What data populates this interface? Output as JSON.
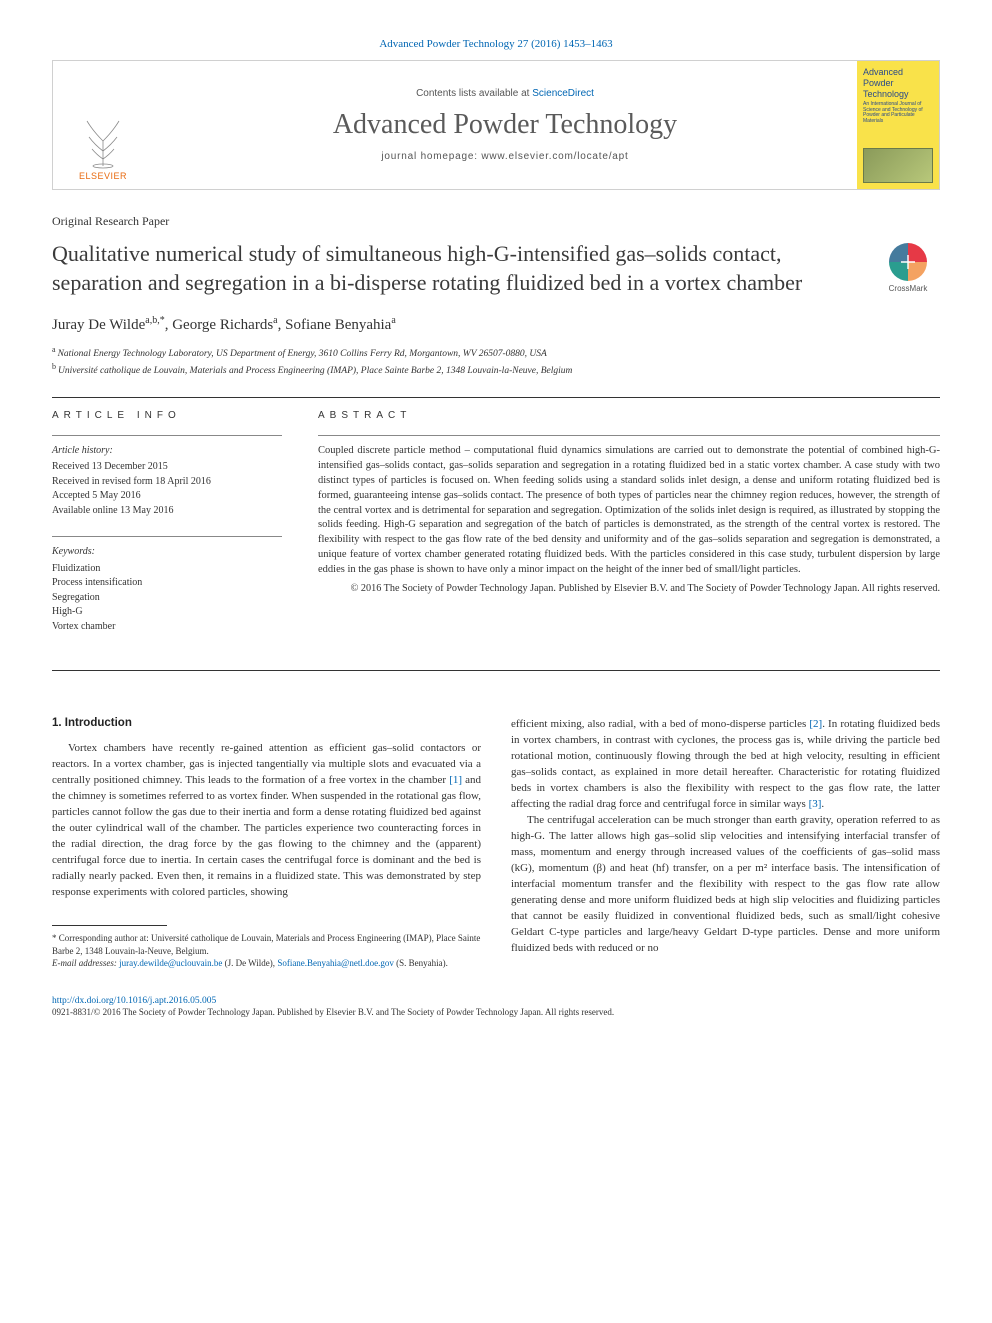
{
  "header": {
    "citation": "Advanced Powder Technology 27 (2016) 1453–1463",
    "contents_prefix": "Contents lists available at ",
    "contents_link": "ScienceDirect",
    "journal": "Advanced Powder Technology",
    "homepage_prefix": "journal homepage: ",
    "homepage_url": "www.elsevier.com/locate/apt",
    "publisher_name": "ELSEVIER",
    "cover_title": "Advanced Powder Technology",
    "cover_sub": "An International Journal of Science and Technology of Powder and Particulate Materials"
  },
  "article": {
    "type": "Original Research Paper",
    "title": "Qualitative numerical study of simultaneous high-G-intensified gas–solids contact, separation and segregation in a bi-disperse rotating fluidized bed in a vortex chamber",
    "crossmark_label": "CrossMark"
  },
  "authors": {
    "line_parts": [
      {
        "text": "Juray De Wilde",
        "sup": "a,b,",
        "star": true
      },
      {
        "text": ", George Richards",
        "sup": "a"
      },
      {
        "text": ", Sofiane Benyahia",
        "sup": "a"
      }
    ]
  },
  "affiliations": [
    {
      "sup": "a",
      "text": "National Energy Technology Laboratory, US Department of Energy, 3610 Collins Ferry Rd, Morgantown, WV 26507-0880, USA"
    },
    {
      "sup": "b",
      "text": "Université catholique de Louvain, Materials and Process Engineering (IMAP), Place Sainte Barbe 2, 1348 Louvain-la-Neuve, Belgium"
    }
  ],
  "article_info": {
    "heading": "ARTICLE INFO",
    "history_label": "Article history:",
    "history": [
      "Received 13 December 2015",
      "Received in revised form 18 April 2016",
      "Accepted 5 May 2016",
      "Available online 13 May 2016"
    ],
    "keywords_label": "Keywords:",
    "keywords": [
      "Fluidization",
      "Process intensification",
      "Segregation",
      "High-G",
      "Vortex chamber"
    ]
  },
  "abstract": {
    "heading": "ABSTRACT",
    "text": "Coupled discrete particle method – computational fluid dynamics simulations are carried out to demonstrate the potential of combined high-G-intensified gas–solids contact, gas–solids separation and segregation in a rotating fluidized bed in a static vortex chamber. A case study with two distinct types of particles is focused on. When feeding solids using a standard solids inlet design, a dense and uniform rotating fluidized bed is formed, guaranteeing intense gas–solids contact. The presence of both types of particles near the chimney region reduces, however, the strength of the central vortex and is detrimental for separation and segregation. Optimization of the solids inlet design is required, as illustrated by stopping the solids feeding. High-G separation and segregation of the batch of particles is demonstrated, as the strength of the central vortex is restored. The flexibility with respect to the gas flow rate of the bed density and uniformity and of the gas–solids separation and segregation is demonstrated, a unique feature of vortex chamber generated rotating fluidized beds. With the particles considered in this case study, turbulent dispersion by large eddies in the gas phase is shown to have only a minor impact on the height of the inner bed of small/light particles.",
    "copyright": "© 2016 The Society of Powder Technology Japan. Published by Elsevier B.V. and The Society of Powder Technology Japan. All rights reserved."
  },
  "body": {
    "section1_heading": "1. Introduction",
    "col1_p1": "Vortex chambers have recently re-gained attention as efficient gas–solid contactors or reactors. In a vortex chamber, gas is injected tangentially via multiple slots and evacuated via a centrally positioned chimney. This leads to the formation of a free vortex in the chamber [1] and the chimney is sometimes referred to as vortex finder. When suspended in the rotational gas flow, particles cannot follow the gas due to their inertia and form a dense rotating fluidized bed against the outer cylindrical wall of the chamber. The particles experience two counteracting forces in the radial direction, the drag force by the gas flowing to the chimney and the (apparent) centrifugal force due to inertia. In certain cases the centrifugal force is dominant and the bed is radially nearly packed. Even then, it remains in a fluidized state. This was demonstrated by step response experiments with colored particles, showing",
    "col2_p1": "efficient mixing, also radial, with a bed of mono-disperse particles [2]. In rotating fluidized beds in vortex chambers, in contrast with cyclones, the process gas is, while driving the particle bed rotational motion, continuously flowing through the bed at high velocity, resulting in efficient gas–solids contact, as explained in more detail hereafter. Characteristic for rotating fluidized beds in vortex chambers is also the flexibility with respect to the gas flow rate, the latter affecting the radial drag force and centrifugal force in similar ways [3].",
    "col2_p2": "The centrifugal acceleration can be much stronger than earth gravity, operation referred to as high-G. The latter allows high gas–solid slip velocities and intensifying interfacial transfer of mass, momentum and energy through increased values of the coefficients of gas–solid mass (kG), momentum (β) and heat (hf) transfer, on a per m² interface basis. The intensification of interfacial momentum transfer and the flexibility with respect to the gas flow rate allow generating dense and more uniform fluidized beds at high slip velocities and fluidizing particles that cannot be easily fluidized in conventional fluidized beds, such as small/light cohesive Geldart C-type particles and large/heavy Geldart D-type particles. Dense and more uniform fluidized beds with reduced or no"
  },
  "footnote": {
    "corr_prefix": "* Corresponding author at: Université catholique de Louvain, Materials and Process Engineering (IMAP), Place Sainte Barbe 2, 1348 Louvain-la-Neuve, Belgium.",
    "email_label": "E-mail addresses:",
    "emails": [
      {
        "addr": "juray.dewilde@uclouvain.be",
        "who": "(J. De Wilde)"
      },
      {
        "addr": "Sofiane.Benyahia@netl.doe.gov",
        "who": "(S. Benyahia)."
      }
    ]
  },
  "footer": {
    "doi_url": "http://dx.doi.org/10.1016/j.apt.2016.05.005",
    "issn_copy": "0921-8831/© 2016 The Society of Powder Technology Japan. Published by Elsevier B.V. and The Society of Powder Technology Japan. All rights reserved."
  },
  "colors": {
    "link": "#0066b3",
    "text": "#333333",
    "elsevier_orange": "#e86a10",
    "cover_bg": "#f9e24a",
    "cover_text": "#2a4a8a"
  }
}
